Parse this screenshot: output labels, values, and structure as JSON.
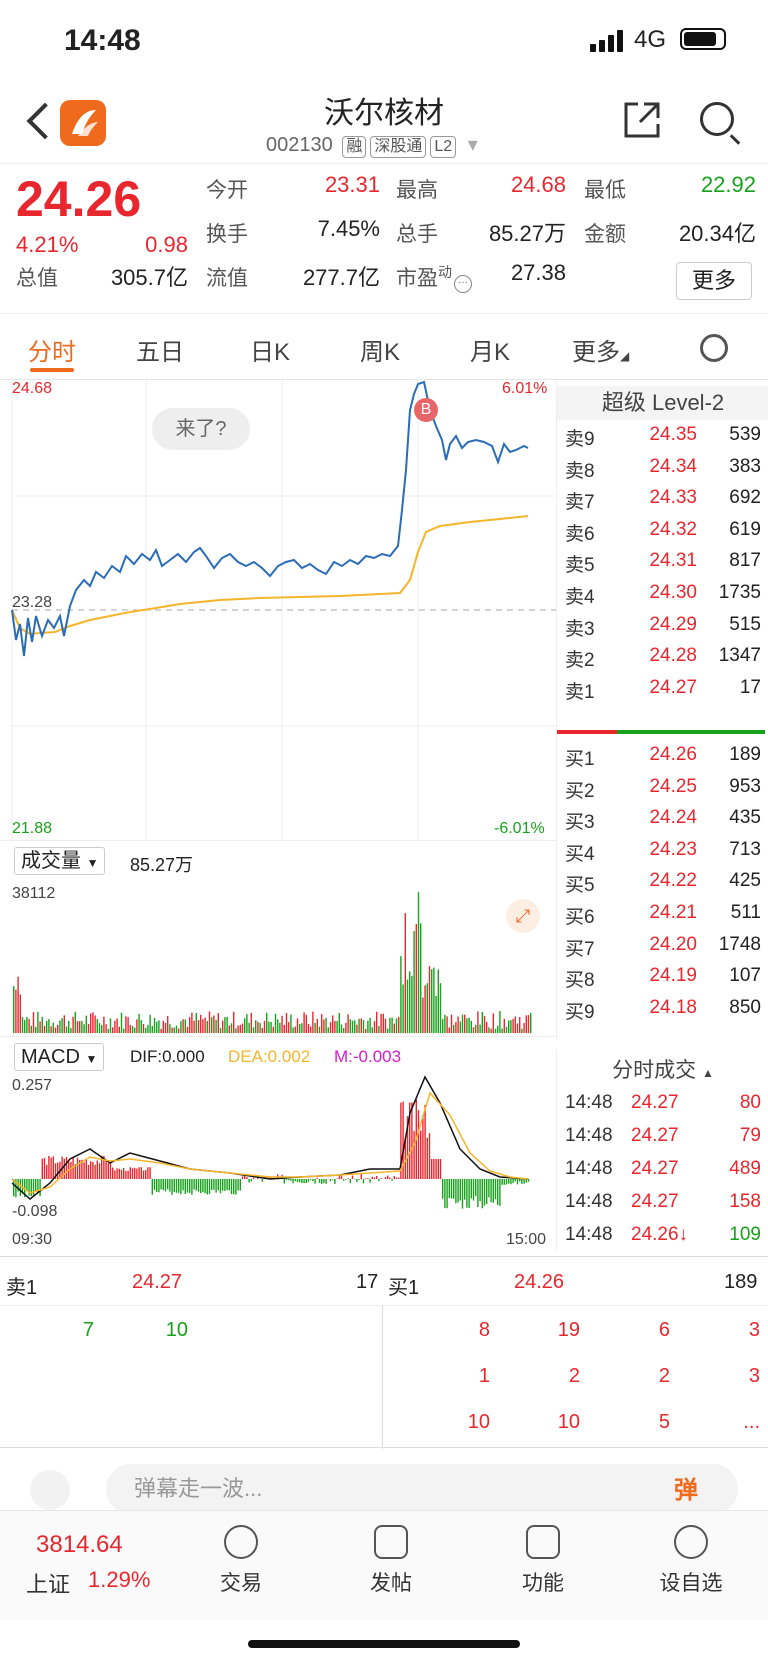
{
  "status": {
    "time": "14:48",
    "network": "4G"
  },
  "header": {
    "title": "沃尔核材",
    "code": "002130",
    "tags": [
      "融",
      "深股通",
      "L2"
    ]
  },
  "quote": {
    "price": "24.26",
    "change_pct": "4.21%",
    "change": "0.98",
    "fields": [
      {
        "label": "今开",
        "value": "23.31",
        "color": "red"
      },
      {
        "label": "最高",
        "value": "24.68",
        "color": "red"
      },
      {
        "label": "最低",
        "value": "22.92",
        "color": "green"
      },
      {
        "label": "换手",
        "value": "7.45%",
        "color": "black"
      },
      {
        "label": "总手",
        "value": "85.27万",
        "color": "black"
      },
      {
        "label": "金额",
        "value": "20.34亿",
        "color": "black"
      },
      {
        "label": "总值",
        "value": "305.7亿",
        "color": "black"
      },
      {
        "label": "流值",
        "value": "277.7亿",
        "color": "black"
      },
      {
        "label": "市盈",
        "value": "27.38",
        "color": "black",
        "sup": "动"
      }
    ],
    "more": "更多"
  },
  "tabs": [
    "分时",
    "五日",
    "日K",
    "周K",
    "月K",
    "更多"
  ],
  "chart": {
    "price_high": "24.68",
    "price_low": "21.88",
    "pct_high": "6.01%",
    "pct_low": "-6.01%",
    "prev_close": "23.28",
    "bubble": "来了?",
    "marker": "B",
    "volume_label": "成交量",
    "volume_total": "85.27万",
    "volume_max": "38112",
    "macd_label": "MACD",
    "dif": "DIF:0.000",
    "dea": "DEA:0.002",
    "m": "M:-0.003",
    "macd_high": "0.257",
    "macd_low": "-0.098",
    "time_start": "09:30",
    "time_end": "15:00",
    "colors": {
      "price": "#2b6cb8",
      "avg": "#f4b52a",
      "up": "#e8262d",
      "down": "#17a21b"
    }
  },
  "level2": {
    "title": "超级 Level-2",
    "asks": [
      {
        "label": "卖9",
        "price": "24.35",
        "vol": "539"
      },
      {
        "label": "卖8",
        "price": "24.34",
        "vol": "383"
      },
      {
        "label": "卖7",
        "price": "24.33",
        "vol": "692"
      },
      {
        "label": "卖6",
        "price": "24.32",
        "vol": "619"
      },
      {
        "label": "卖5",
        "price": "24.31",
        "vol": "817"
      },
      {
        "label": "卖4",
        "price": "24.30",
        "vol": "1735"
      },
      {
        "label": "卖3",
        "price": "24.29",
        "vol": "515"
      },
      {
        "label": "卖2",
        "price": "24.28",
        "vol": "1347"
      },
      {
        "label": "卖1",
        "price": "24.27",
        "vol": "17"
      }
    ],
    "bids": [
      {
        "label": "买1",
        "price": "24.26",
        "vol": "189"
      },
      {
        "label": "买2",
        "price": "24.25",
        "vol": "953"
      },
      {
        "label": "买3",
        "price": "24.24",
        "vol": "435"
      },
      {
        "label": "买4",
        "price": "24.23",
        "vol": "713"
      },
      {
        "label": "买5",
        "price": "24.22",
        "vol": "425"
      },
      {
        "label": "买6",
        "price": "24.21",
        "vol": "511"
      },
      {
        "label": "买7",
        "price": "24.20",
        "vol": "1748"
      },
      {
        "label": "买8",
        "price": "24.19",
        "vol": "107"
      },
      {
        "label": "买9",
        "price": "24.18",
        "vol": "850"
      }
    ]
  },
  "trades": {
    "title": "分时成交",
    "rows": [
      {
        "time": "14:48",
        "price": "24.27",
        "vol": "80",
        "color": "red"
      },
      {
        "time": "14:48",
        "price": "24.27",
        "vol": "79",
        "color": "red"
      },
      {
        "time": "14:48",
        "price": "24.27",
        "vol": "489",
        "color": "red"
      },
      {
        "time": "14:48",
        "price": "24.27",
        "vol": "158",
        "color": "red"
      },
      {
        "time": "14:48",
        "price": "24.26↓",
        "vol": "109",
        "color": "green"
      }
    ]
  },
  "queue": {
    "ask_label": "卖1",
    "ask_price": "24.27",
    "ask_vol": "17",
    "bid_label": "买1",
    "bid_price": "24.26",
    "bid_vol": "189",
    "ask_items": [
      "7",
      "10"
    ],
    "bid_items": [
      [
        "8",
        "19",
        "6",
        "3"
      ],
      [
        "1",
        "2",
        "2",
        "3"
      ],
      [
        "10",
        "10",
        "5",
        "..."
      ]
    ]
  },
  "danmaku": {
    "placeholder": "弹幕走一波...",
    "button": "弹"
  },
  "nav": {
    "index_value": "3814.64",
    "index_name": "上证",
    "index_pct": "1.29%",
    "items": [
      "交易",
      "发帖",
      "功能",
      "设自选"
    ]
  }
}
